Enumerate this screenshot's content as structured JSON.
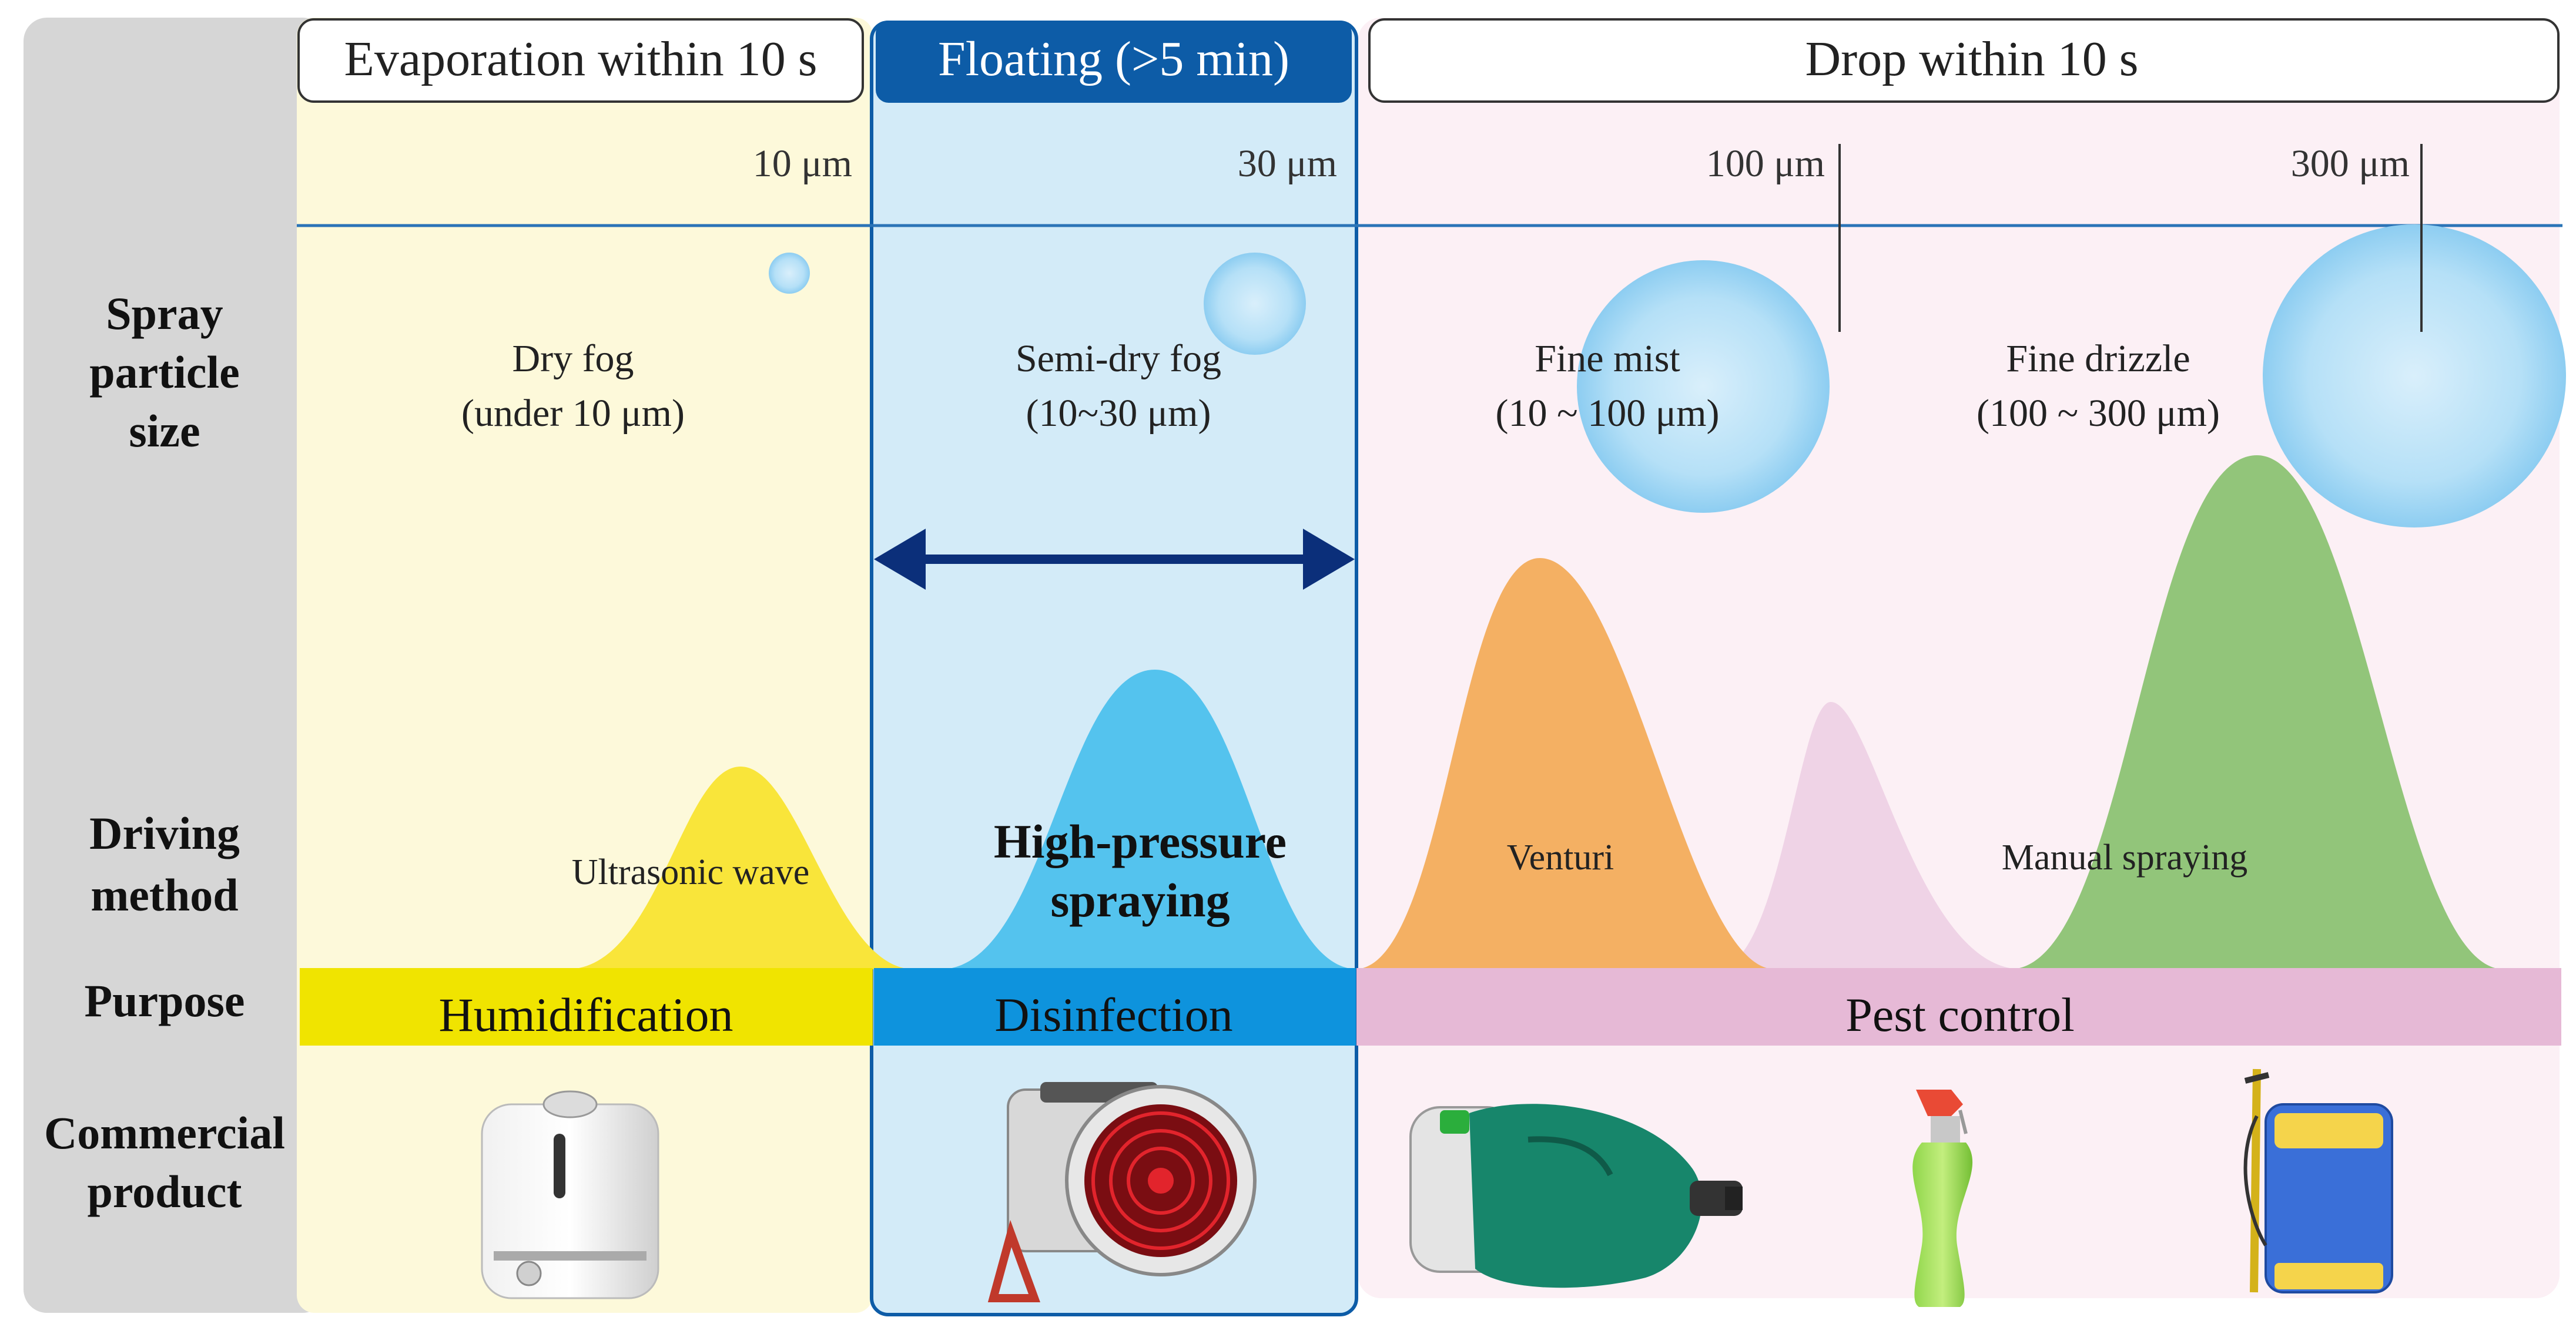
{
  "zones": {
    "evaporation": {
      "header": "Evaporation  within  10 s",
      "size_marker": "10  μm"
    },
    "floating": {
      "header": "Floating  (>5 min)",
      "size_marker": "30  μm"
    },
    "drop": {
      "header": "Drop  within  10 s",
      "size_marker_1": "100  μm",
      "size_marker_2": "300  μm"
    }
  },
  "row_labels": {
    "spray_particle_size": [
      "Spray",
      "particle",
      "size"
    ],
    "driving_method": [
      "Driving",
      "method"
    ],
    "purpose": [
      "Purpose"
    ],
    "commercial_product": [
      "Commercial",
      "product"
    ]
  },
  "particle_categories": [
    {
      "name": "Dry  fog",
      "range": "(under 10  μm)"
    },
    {
      "name": "Semi-dry  fog",
      "range": "(10~30  μm)"
    },
    {
      "name": "Fine  mist",
      "range": "(10 ~ 100  μm)"
    },
    {
      "name": "Fine  drizzle",
      "range": "(100 ~ 300  μm)"
    }
  ],
  "driving_methods": [
    {
      "label": "Ultrasonic  wave",
      "color": "#f9e53a"
    },
    {
      "label": [
        "High-pressure",
        "spraying"
      ],
      "color": "#54c3ee"
    },
    {
      "label": "Venturi",
      "color": "#f4b063"
    },
    {
      "label": "",
      "color": "#efd3e6"
    },
    {
      "label": "Manual  spraying",
      "color": "#92c57a"
    }
  ],
  "purposes": [
    {
      "label": "Humidification",
      "color": "#f0e400"
    },
    {
      "label": "Disinfection",
      "color": "#0e93dd"
    },
    {
      "label": "Pest control",
      "color": "#e6b9d6"
    }
  ],
  "products": [
    {
      "name": "humidifier"
    },
    {
      "name": "fan-sprayer"
    },
    {
      "name": "handheld-fogger"
    },
    {
      "name": "spray-bottle"
    },
    {
      "name": "backpack-sprayer"
    }
  ],
  "colors": {
    "sidebar": "#d6d6d6",
    "evaporation_bg": "#fdf9da",
    "floating_bg": "#d3ebf8",
    "drop_bg": "#fcf0f5",
    "floating_border": "#0d5ca7",
    "arrow": "#0b2f7a",
    "droplet": "#a9daf5"
  }
}
